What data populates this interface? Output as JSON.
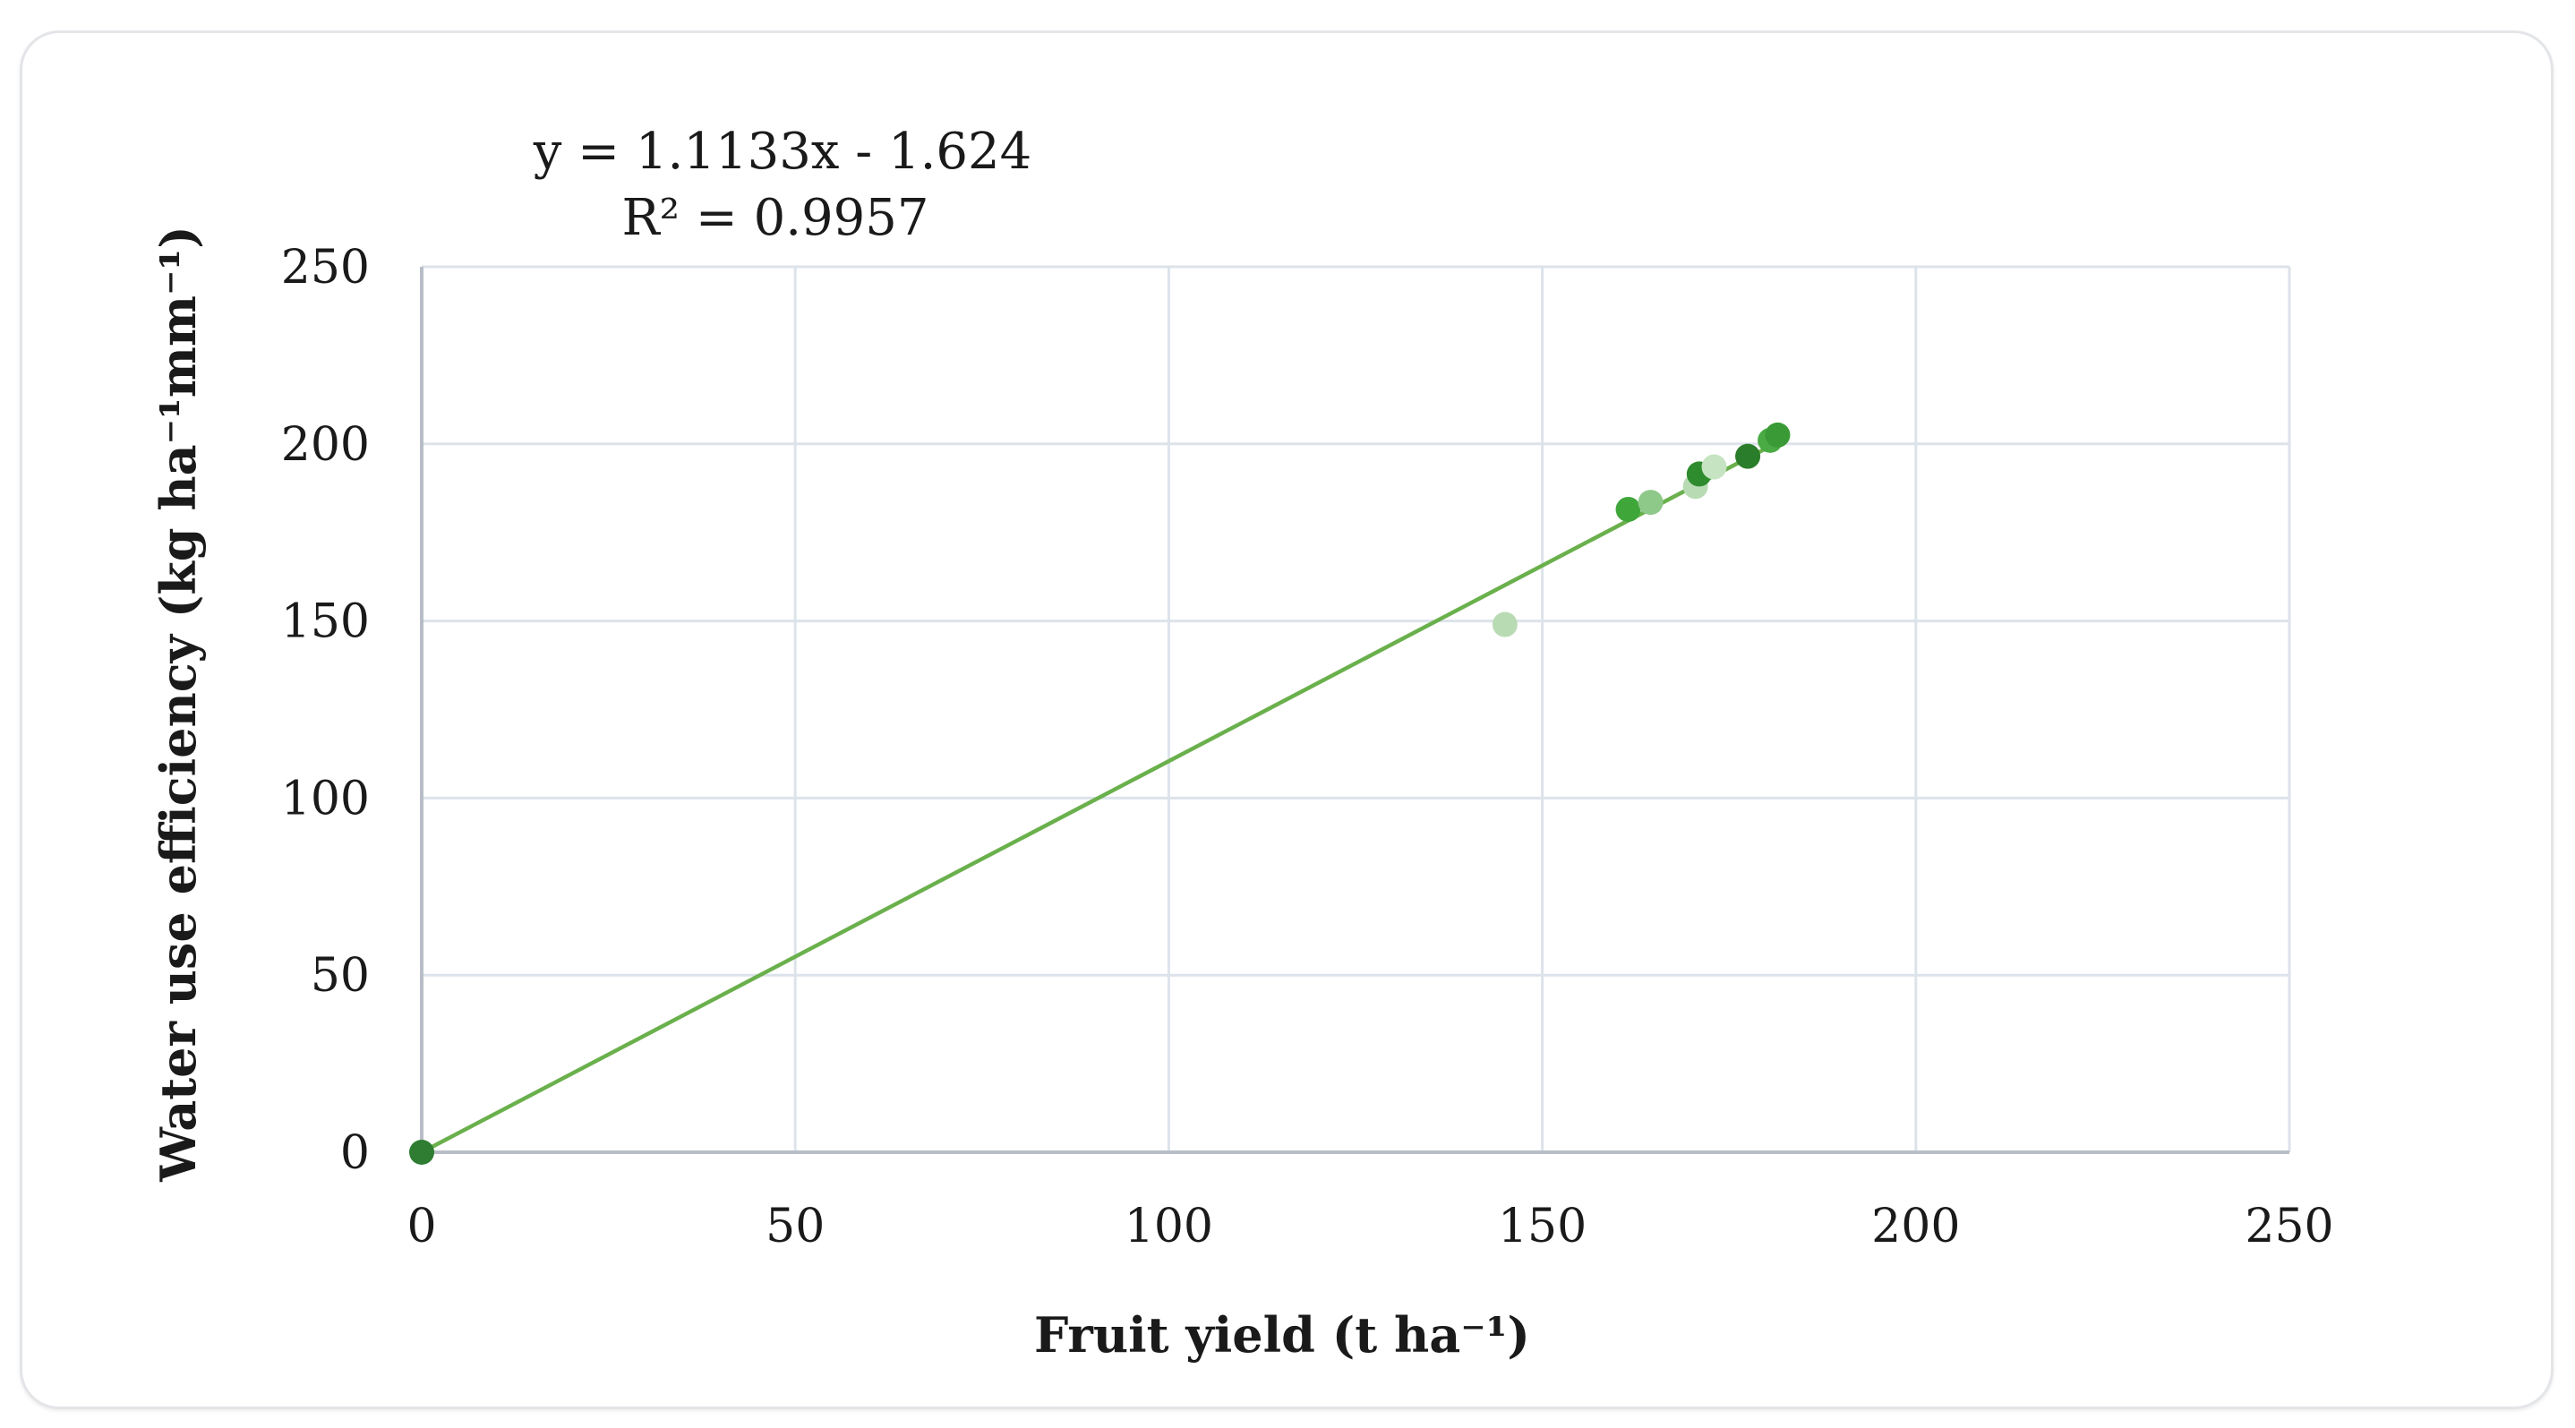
{
  "chart_data": {
    "type": "scatter",
    "title": "",
    "xlabel": "Fruit yield (t ha⁻¹)",
    "ylabel": "Water use efficiency (kg ha⁻¹mm⁻¹)",
    "xlim": [
      0,
      250
    ],
    "ylim": [
      0,
      250
    ],
    "x_ticks": [
      0,
      50,
      100,
      150,
      200,
      250
    ],
    "y_ticks": [
      0,
      50,
      100,
      150,
      200,
      250
    ],
    "grid": true,
    "points": [
      {
        "x": 0,
        "y": 0,
        "color": "#2e7d32"
      },
      {
        "x": 145,
        "y": 149,
        "color": "#b9dbb4"
      },
      {
        "x": 161.5,
        "y": 181.5,
        "color": "#3fa63a"
      },
      {
        "x": 164.5,
        "y": 183.5,
        "color": "#8fc98a"
      },
      {
        "x": 170.5,
        "y": 188,
        "color": "#b9dbb4"
      },
      {
        "x": 171,
        "y": 191.5,
        "color": "#2e8b2e"
      },
      {
        "x": 173,
        "y": 193.5,
        "color": "#c6e3c2"
      },
      {
        "x": 177.5,
        "y": 196.5,
        "color": "#2a7d2a"
      },
      {
        "x": 180.5,
        "y": 201,
        "color": "#4aaa44"
      },
      {
        "x": 181.5,
        "y": 202.5,
        "color": "#3a9a36"
      }
    ],
    "trendline": {
      "equation": "y = 1.1133x - 1.624",
      "r_squared": "R² = 0.9957",
      "slope": 1.1133,
      "intercept": -1.624,
      "x_range": [
        0,
        181.5
      ],
      "color": "#6ab04c"
    },
    "colors": {
      "grid": "#dde3ea",
      "axis": "#b8bec8",
      "text": "#1a1a1a"
    }
  }
}
